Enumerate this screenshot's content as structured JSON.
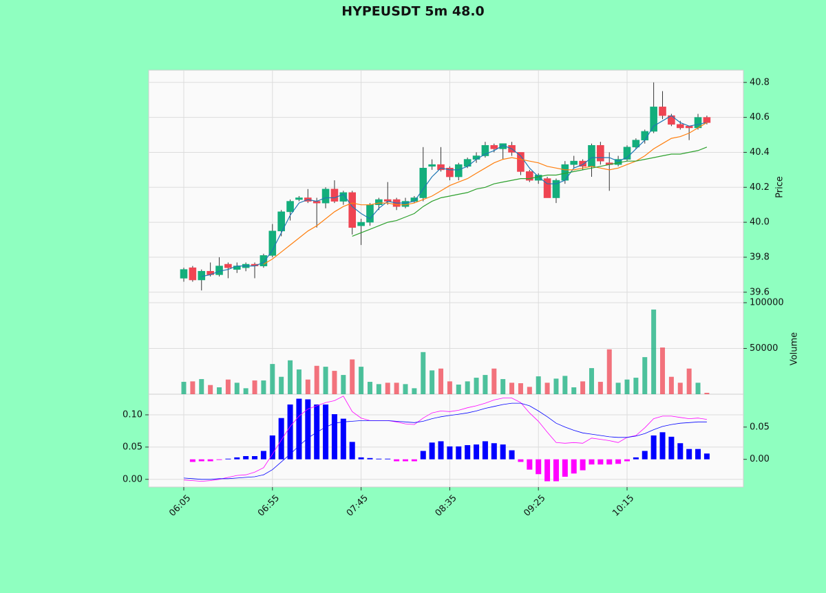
{
  "chart_data": {
    "type": "candlestick",
    "title": "HYPEUSDT 5m 48.0",
    "categories": [
      "06:05",
      null,
      null,
      null,
      null,
      null,
      null,
      null,
      null,
      null,
      "06:55",
      null,
      null,
      null,
      null,
      null,
      null,
      null,
      null,
      null,
      "07:45",
      null,
      null,
      null,
      null,
      null,
      null,
      null,
      null,
      null,
      "08:35",
      null,
      null,
      null,
      null,
      null,
      null,
      null,
      null,
      null,
      "09:25",
      null,
      null,
      null,
      null,
      null,
      null,
      null,
      null,
      null,
      "10:15",
      null,
      null,
      null,
      null,
      null,
      null,
      null,
      null,
      null
    ],
    "open": [
      39.68,
      39.74,
      39.67,
      39.72,
      39.7,
      39.76,
      39.73,
      39.74,
      39.76,
      39.75,
      39.81,
      39.95,
      40.06,
      40.13,
      40.14,
      40.12,
      40.11,
      40.19,
      40.12,
      40.17,
      39.98,
      40.0,
      40.1,
      40.13,
      40.13,
      40.09,
      40.12,
      40.14,
      40.32,
      40.33,
      40.31,
      40.26,
      40.32,
      40.36,
      40.38,
      40.44,
      40.42,
      40.44,
      40.4,
      40.29,
      40.24,
      40.25,
      40.14,
      40.24,
      40.33,
      40.35,
      40.32,
      40.44,
      40.34,
      40.33,
      40.36,
      40.43,
      40.47,
      40.52,
      40.66,
      40.61,
      40.56,
      40.55,
      40.54,
      40.6
    ],
    "high": [
      39.74,
      39.75,
      39.73,
      39.77,
      39.8,
      39.77,
      39.77,
      39.77,
      39.77,
      39.82,
      39.99,
      40.07,
      40.13,
      40.15,
      40.19,
      40.14,
      40.2,
      40.24,
      40.18,
      40.18,
      40.02,
      40.11,
      40.14,
      40.23,
      40.14,
      40.14,
      40.15,
      40.43,
      40.36,
      40.43,
      40.32,
      40.34,
      40.37,
      40.4,
      40.46,
      40.45,
      40.45,
      40.46,
      40.4,
      40.3,
      40.28,
      40.26,
      40.25,
      40.35,
      40.38,
      40.36,
      40.45,
      40.46,
      40.4,
      40.38,
      40.44,
      40.48,
      40.53,
      40.8,
      40.75,
      40.62,
      40.58,
      40.55,
      40.62,
      40.61
    ],
    "low": [
      39.66,
      39.66,
      39.61,
      39.69,
      39.69,
      39.68,
      39.71,
      39.72,
      39.68,
      39.74,
      39.8,
      39.92,
      40.01,
      40.12,
      40.11,
      39.97,
      40.08,
      40.11,
      40.1,
      39.93,
      39.87,
      39.98,
      40.07,
      40.1,
      40.07,
      40.08,
      40.11,
      40.12,
      40.3,
      40.29,
      40.24,
      40.24,
      40.31,
      40.34,
      40.37,
      40.4,
      40.36,
      40.38,
      40.27,
      40.23,
      40.22,
      40.14,
      40.11,
      40.22,
      40.31,
      40.3,
      40.26,
      40.33,
      40.18,
      40.32,
      40.35,
      40.42,
      40.45,
      40.51,
      40.59,
      40.55,
      40.53,
      40.47,
      40.53,
      40.56
    ],
    "close": [
      39.73,
      39.67,
      39.72,
      39.7,
      39.75,
      39.74,
      39.75,
      39.76,
      39.75,
      39.81,
      39.95,
      40.06,
      40.12,
      40.14,
      40.12,
      40.11,
      40.19,
      40.12,
      40.17,
      39.97,
      40.0,
      40.1,
      40.13,
      40.12,
      40.09,
      40.12,
      40.14,
      40.31,
      40.33,
      40.3,
      40.26,
      40.33,
      40.36,
      40.38,
      40.44,
      40.42,
      40.45,
      40.4,
      40.29,
      40.24,
      40.27,
      40.14,
      40.24,
      40.33,
      40.35,
      40.32,
      40.44,
      40.35,
      40.33,
      40.36,
      40.43,
      40.47,
      40.52,
      40.66,
      40.61,
      40.56,
      40.54,
      40.54,
      40.6,
      40.57
    ],
    "up_color": "#13ae7c",
    "down_color": "#ef4452",
    "wick_color": "#333333",
    "ylabel": "Price",
    "ylim": [
      39.54,
      40.87
    ],
    "yticks": [
      39.6,
      39.8,
      {
        "value": 40,
        "label": "40.0"
      },
      40.2,
      40.4,
      40.6,
      40.8
    ],
    "grid": true,
    "moving_averages": [
      {
        "color": "#1f77b4",
        "values": [
          null,
          null,
          39.69,
          39.7,
          39.72,
          39.73,
          39.75,
          39.75,
          39.75,
          39.77,
          39.84,
          39.94,
          40.04,
          40.11,
          40.13,
          40.12,
          40.14,
          40.14,
          40.16,
          40.09,
          40.05,
          40.02,
          40.08,
          40.12,
          40.11,
          40.11,
          40.12,
          40.19,
          40.26,
          40.31,
          40.3,
          40.3,
          40.32,
          40.36,
          40.39,
          40.41,
          40.44,
          40.42,
          40.38,
          40.31,
          40.26,
          40.22,
          40.22,
          40.24,
          40.31,
          40.33,
          40.37,
          40.37,
          40.37,
          40.35,
          40.37,
          40.42,
          40.47,
          40.55,
          40.58,
          40.61,
          40.57,
          40.55,
          40.56,
          40.57
        ]
      },
      {
        "color": "#ff7f0e",
        "values": [
          null,
          null,
          null,
          null,
          null,
          null,
          null,
          null,
          null,
          39.76,
          39.79,
          39.83,
          39.87,
          39.91,
          39.95,
          39.98,
          40.02,
          40.06,
          40.09,
          40.11,
          40.1,
          40.1,
          40.11,
          40.11,
          40.1,
          40.1,
          40.11,
          40.13,
          40.15,
          40.18,
          40.21,
          40.23,
          40.25,
          40.28,
          40.31,
          40.34,
          40.36,
          40.37,
          40.36,
          40.35,
          40.34,
          40.32,
          40.31,
          40.3,
          40.3,
          40.31,
          40.32,
          40.31,
          40.3,
          40.31,
          40.33,
          40.35,
          40.38,
          40.42,
          40.45,
          40.48,
          40.49,
          40.51,
          40.54,
          40.57
        ]
      },
      {
        "color": "#2ca02c",
        "values": [
          null,
          null,
          null,
          null,
          null,
          null,
          null,
          null,
          null,
          null,
          null,
          null,
          null,
          null,
          null,
          null,
          null,
          null,
          null,
          39.92,
          39.94,
          39.96,
          39.98,
          40.0,
          40.01,
          40.03,
          40.05,
          40.09,
          40.12,
          40.14,
          40.15,
          40.16,
          40.17,
          40.19,
          40.2,
          40.22,
          40.23,
          40.24,
          40.25,
          40.25,
          40.26,
          40.27,
          40.27,
          40.28,
          40.29,
          40.3,
          40.31,
          40.32,
          40.33,
          40.34,
          40.35,
          40.35,
          40.36,
          40.37,
          40.38,
          40.39,
          40.39,
          40.4,
          40.41,
          40.43
        ]
      }
    ],
    "volume": {
      "ylabel": "Volume",
      "values": [
        13500,
        14000,
        16500,
        10000,
        7500,
        16000,
        12500,
        6500,
        15000,
        15000,
        33000,
        19000,
        37000,
        27000,
        16000,
        31000,
        30000,
        25500,
        21000,
        38000,
        30000,
        13500,
        11000,
        12500,
        12500,
        11000,
        6500,
        46000,
        26000,
        28000,
        14000,
        10500,
        14000,
        18000,
        21000,
        28000,
        16500,
        12500,
        12000,
        8000,
        19500,
        12500,
        17000,
        20000,
        7500,
        14000,
        28500,
        13500,
        49000,
        12500,
        16000,
        18000,
        40500,
        92500,
        51000,
        19000,
        12500,
        28000,
        12500,
        1500
      ],
      "ylim": [
        0,
        100000
      ],
      "yticks": [
        50000,
        100000
      ]
    },
    "macd": {
      "ylim": [
        -0.012,
        0.132
      ],
      "yticks": [
        {
          "value": 0,
          "label": "0.00"
        },
        {
          "value": 0.05,
          "label": "0.05"
        },
        {
          "value": 0.1,
          "label": "0.10"
        }
      ],
      "y2lim": [
        -0.043,
        0.101
      ],
      "y2ticks": [
        {
          "value": 0,
          "label": "0.00"
        },
        {
          "value": 0.05,
          "label": "0.05"
        }
      ],
      "series": [
        {
          "color": "#ff00ff",
          "values": [
            -0.001,
            -0.002,
            -0.003,
            -0.002,
            0,
            0.003,
            0.006,
            0.007,
            0.011,
            0.018,
            0.039,
            0.061,
            0.082,
            0.098,
            0.109,
            0.114,
            0.119,
            0.122,
            0.129,
            0.105,
            0.095,
            0.091,
            0.091,
            0.091,
            0.089,
            0.086,
            0.085,
            0.095,
            0.103,
            0.106,
            0.105,
            0.107,
            0.111,
            0.114,
            0.118,
            0.123,
            0.126,
            0.126,
            0.119,
            0.103,
            0.09,
            0.073,
            0.057,
            0.056,
            0.057,
            0.056,
            0.064,
            0.062,
            0.06,
            0.057,
            0.065,
            0.068,
            0.08,
            0.094,
            0.098,
            0.098,
            0.096,
            0.094,
            0.095,
            0.093
          ]
        },
        {
          "color": "#0000ff",
          "values": [
            0.002,
            0.001,
            0,
            0,
            0.001,
            0.001,
            0.002,
            0.003,
            0.004,
            0.007,
            0.015,
            0.027,
            0.039,
            0.052,
            0.064,
            0.073,
            0.081,
            0.087,
            0.089,
            0.09,
            0.091,
            0.091,
            0.091,
            0.091,
            0.09,
            0.089,
            0.088,
            0.09,
            0.094,
            0.097,
            0.099,
            0.101,
            0.103,
            0.106,
            0.11,
            0.113,
            0.116,
            0.118,
            0.118,
            0.114,
            0.106,
            0.097,
            0.087,
            0.081,
            0.076,
            0.072,
            0.07,
            0.068,
            0.066,
            0.065,
            0.065,
            0.067,
            0.071,
            0.077,
            0.082,
            0.085,
            0.087,
            0.088,
            0.089,
            0.089
          ]
        }
      ],
      "histogram": {
        "axis": "y2",
        "pos_color": "#0000ff",
        "neg_color": "#ff00ff",
        "values": [
          null,
          -0.004,
          -0.003,
          -0.003,
          -0.001,
          0.001,
          0.003,
          0.005,
          0.005,
          0.013,
          0.037,
          0.064,
          0.085,
          0.094,
          0.093,
          0.085,
          0.085,
          0.07,
          0.063,
          0.027,
          0.003,
          0.002,
          0.001,
          0.001,
          -0.003,
          -0.003,
          -0.003,
          0.013,
          0.026,
          0.028,
          0.02,
          0.02,
          0.022,
          0.023,
          0.028,
          0.025,
          0.023,
          0.014,
          -0.004,
          -0.016,
          -0.023,
          -0.034,
          -0.034,
          -0.027,
          -0.022,
          -0.017,
          -0.008,
          -0.008,
          -0.008,
          -0.007,
          -0.003,
          0.003,
          0.013,
          0.037,
          0.042,
          0.035,
          0.025,
          0.016,
          0.016,
          0.009
        ]
      }
    }
  }
}
